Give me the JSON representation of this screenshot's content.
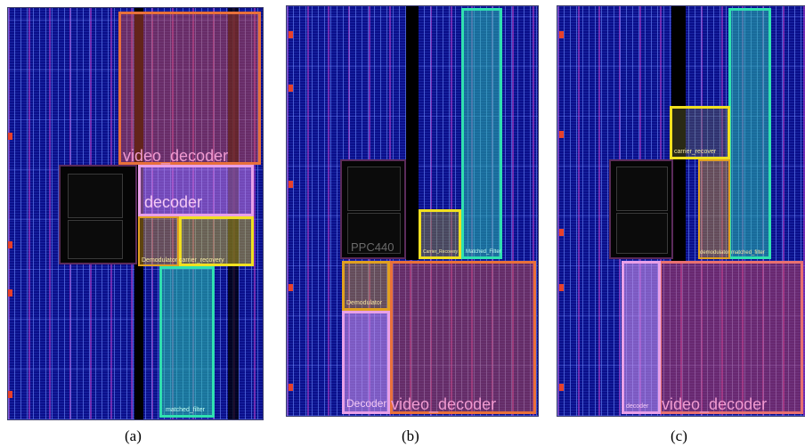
{
  "panels": [
    {
      "caption": "(a)",
      "regions": {
        "video_decoder": "video_decoder",
        "decoder": "decoder",
        "demodulator_carrier": "Demodulator carrier_recovery",
        "matched_filter": "matched_filter"
      }
    },
    {
      "caption": "(b)",
      "regions": {
        "ppc": "PPC440",
        "carrier_recovery": "Carrier_Recovery",
        "matched_filter": "Matched_Filter",
        "demodulator": "Demodulator",
        "decoder": "Decoder",
        "video_decoder": "video_decoder"
      }
    },
    {
      "caption": "(c)",
      "regions": {
        "carrier_recover": "carrier_recover",
        "demod_matched": "demodulator matched_filter",
        "decoder": "decoder",
        "video_decoder": "video_decoder"
      }
    }
  ],
  "colors": {
    "background": "#0a0f8a",
    "video_decoder": "#e8703a",
    "decoder": "#e8a0e8",
    "carrier": "#f0e020",
    "demodulator": "#e0a020",
    "matched_filter": "#30e0b0"
  }
}
